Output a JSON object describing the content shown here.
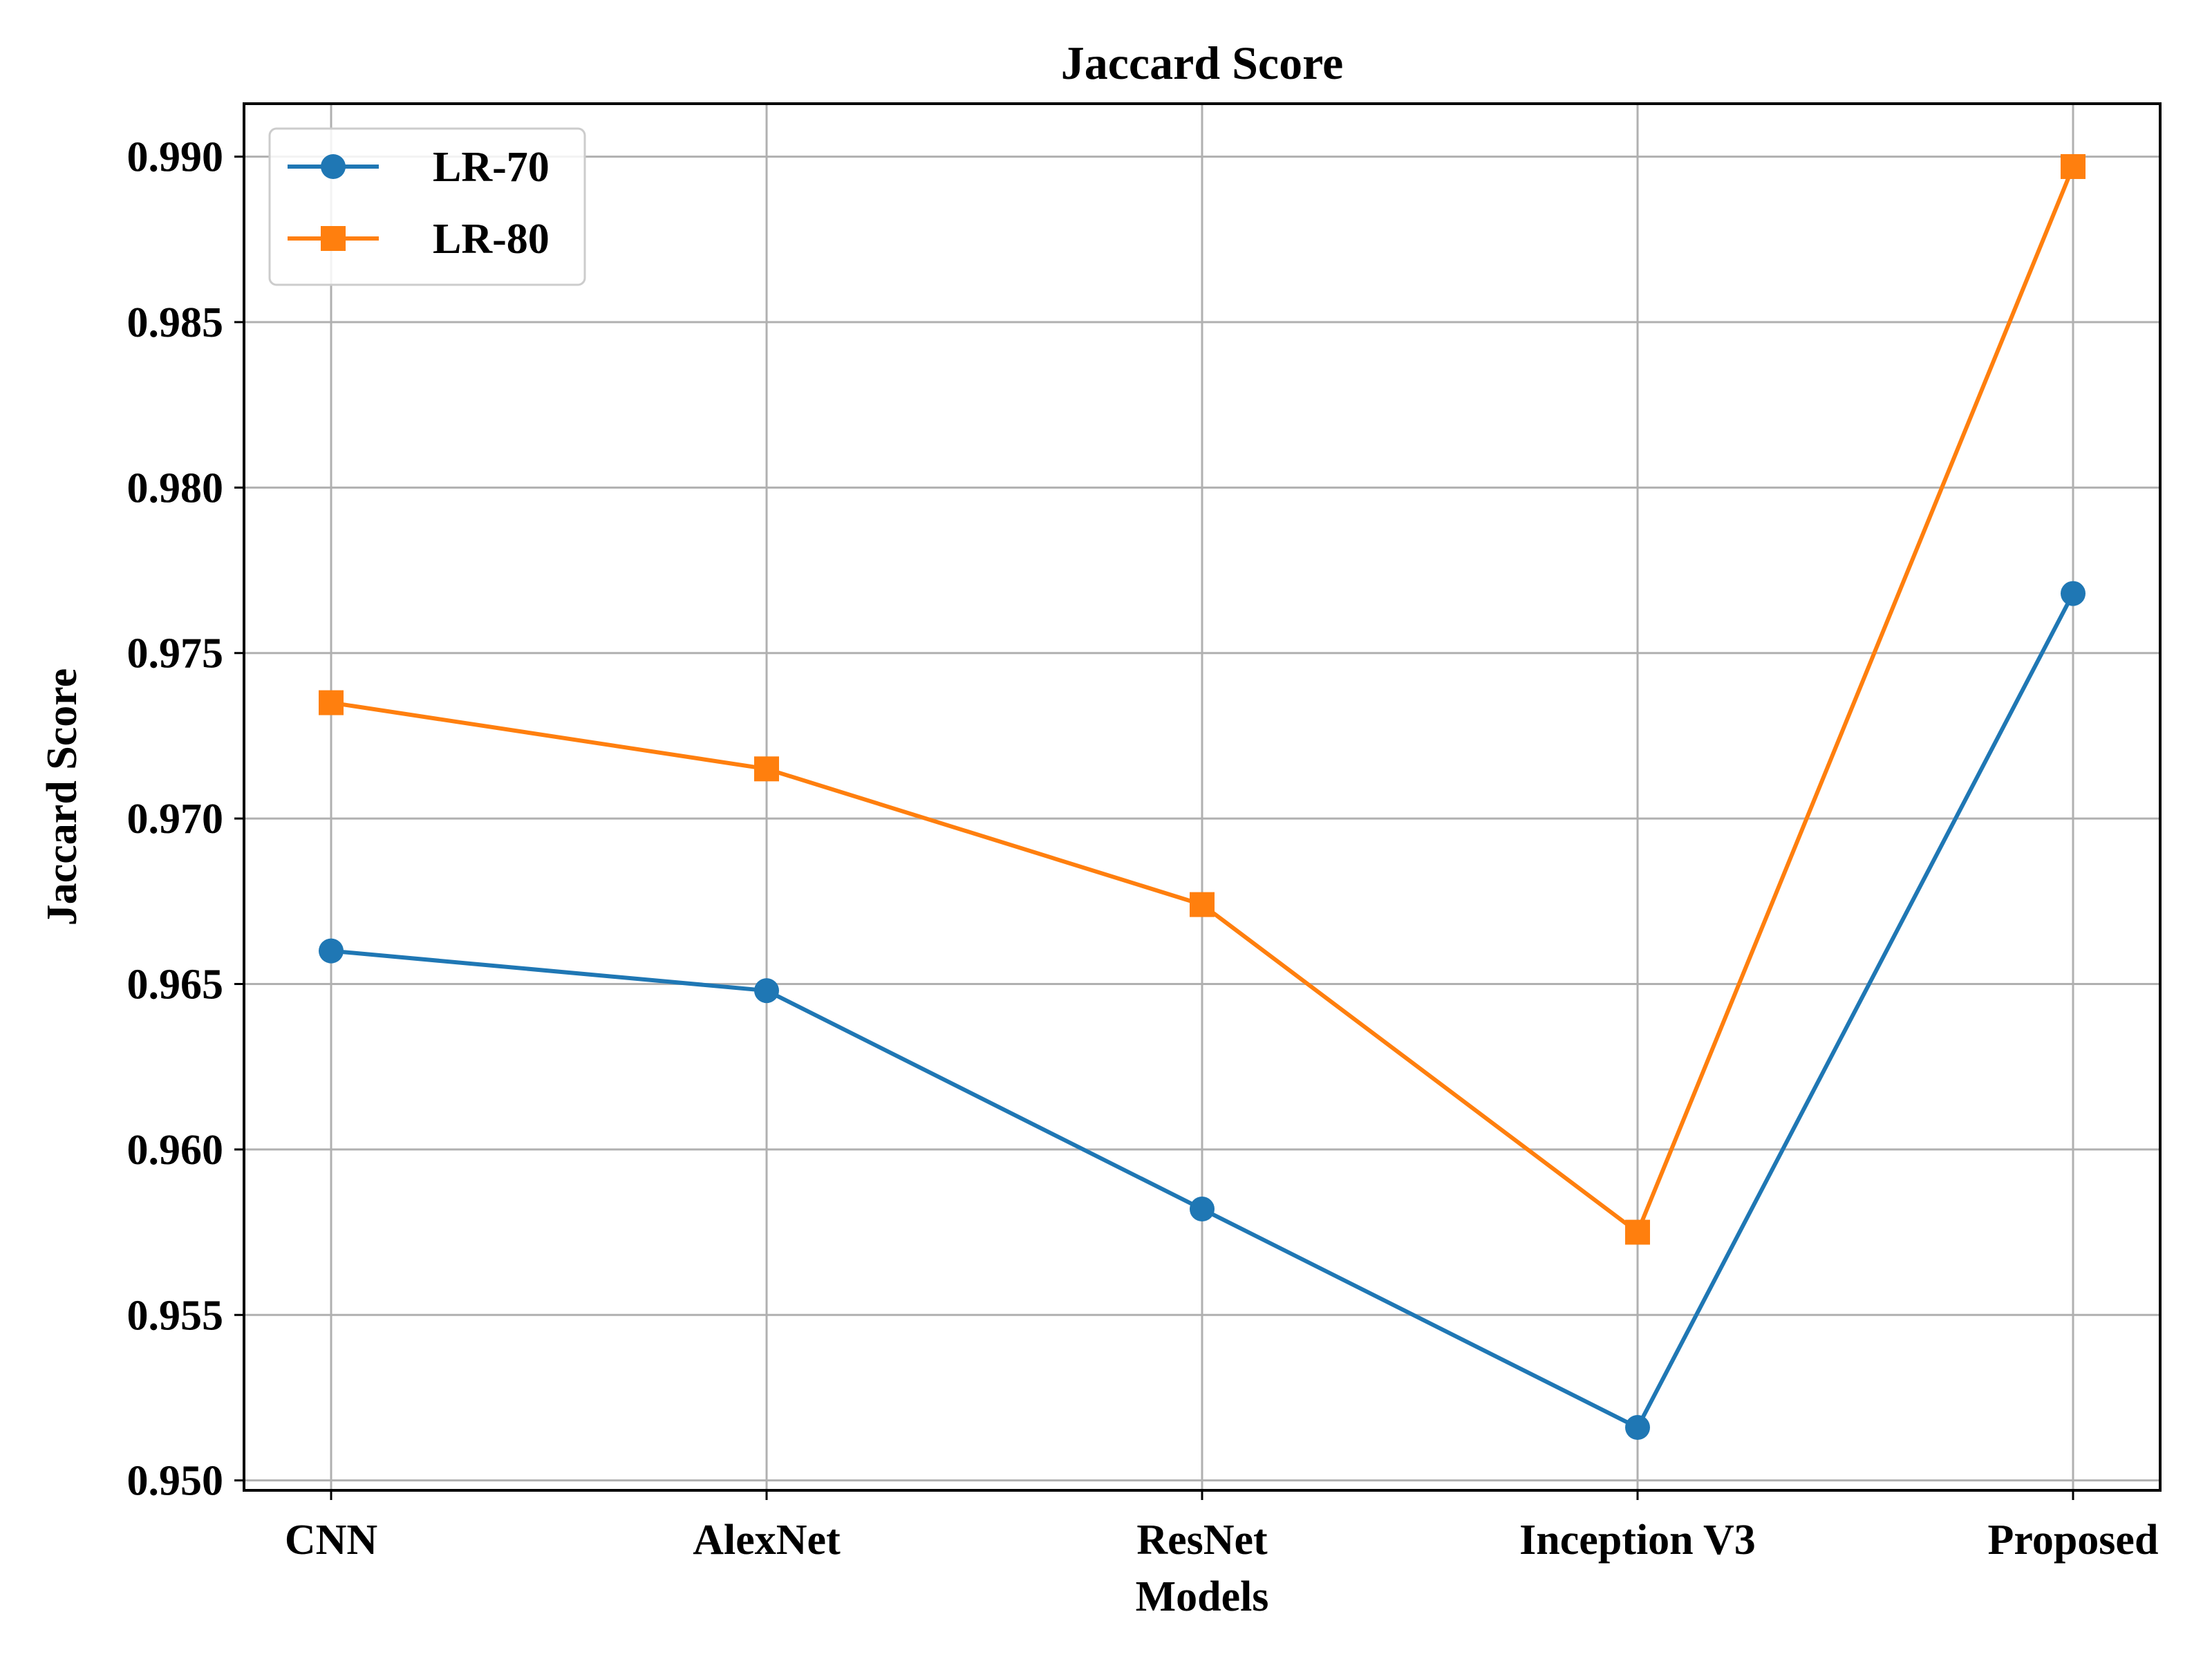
{
  "chart_data": {
    "type": "line",
    "title": "Jaccard Score",
    "xlabel": "Models",
    "ylabel": "Jaccard Score",
    "categories": [
      "CNN",
      "AlexNet",
      "ResNet",
      "Inception V3",
      "Proposed"
    ],
    "ylim": [
      0.9497,
      0.9916
    ],
    "yticks": [
      0.95,
      0.955,
      0.96,
      0.965,
      0.97,
      0.975,
      0.98,
      0.985,
      0.99
    ],
    "ytick_labels": [
      "0.950",
      "0.955",
      "0.960",
      "0.965",
      "0.970",
      "0.975",
      "0.980",
      "0.985",
      "0.990"
    ],
    "grid": true,
    "legend_position": "top-left",
    "series": [
      {
        "name": "LR-70",
        "marker": "circle",
        "color": "#1f77b4",
        "values": [
          0.966,
          0.9648,
          0.9582,
          0.9516,
          0.9768
        ]
      },
      {
        "name": "LR-80",
        "marker": "square",
        "color": "#ff7f0e",
        "values": [
          0.9735,
          0.9715,
          0.9674,
          0.9575,
          0.9897
        ]
      }
    ]
  }
}
